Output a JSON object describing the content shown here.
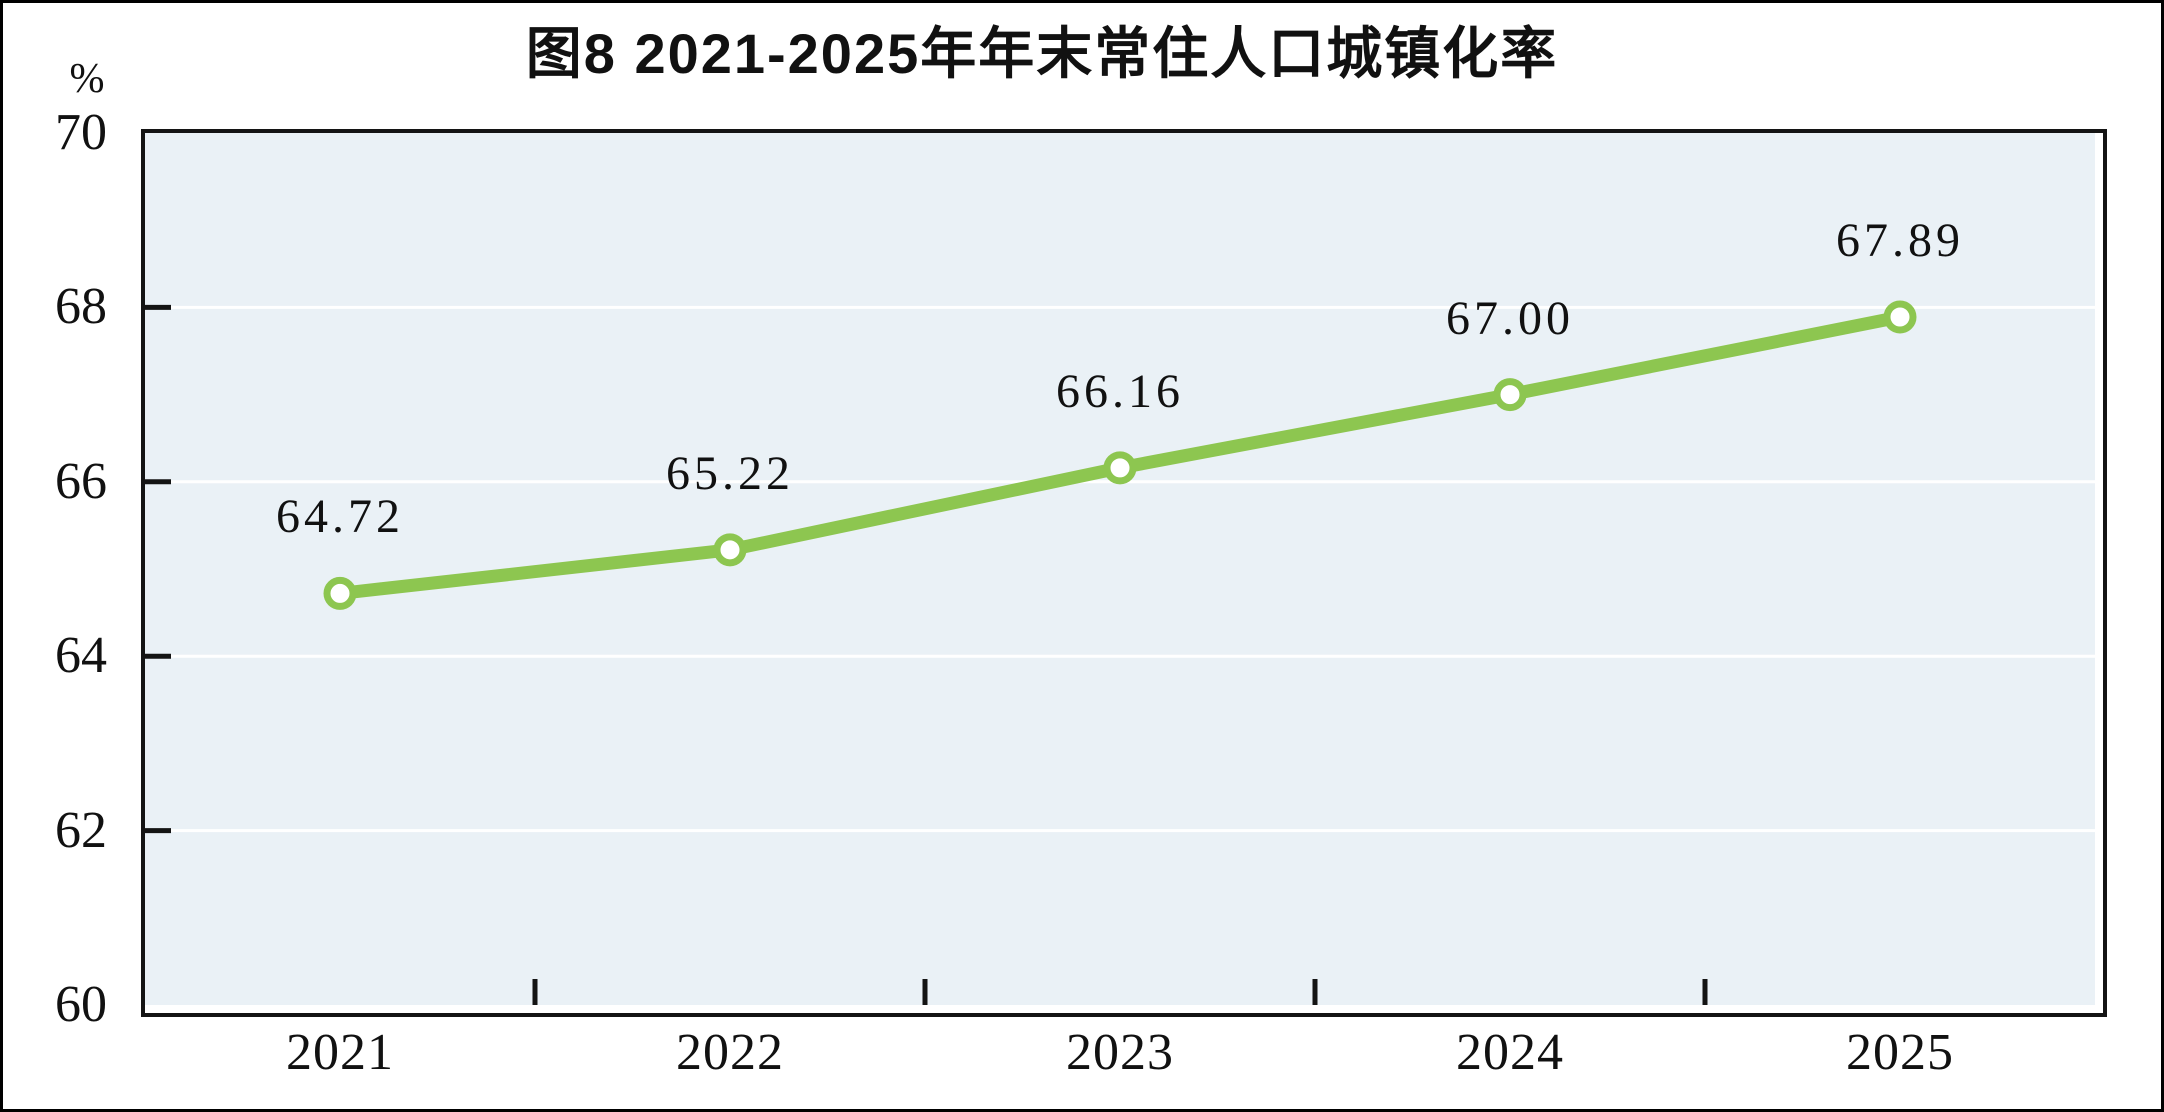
{
  "chart": {
    "title": "图8  2021-2025年年末常住人口城镇化率",
    "y_unit": "%"
  },
  "chart_data": {
    "type": "line",
    "title": "图8  2021-2025年年末常住人口城镇化率",
    "categories": [
      "2021",
      "2022",
      "2023",
      "2024",
      "2025"
    ],
    "values": [
      64.72,
      65.22,
      66.16,
      67.0,
      67.89
    ],
    "point_labels": [
      "64.72",
      "65.22",
      "66.16",
      "67.00",
      "67.89"
    ],
    "ylabel": "%",
    "xlabel": "",
    "ylim": [
      60,
      70
    ],
    "yticks": [
      60,
      62,
      64,
      66,
      68,
      70
    ],
    "grid": true,
    "legend": false,
    "style": {
      "line_color": "#8DC650",
      "marker_fill": "#FFFFFF",
      "plot_bg": "#EAF1F6",
      "grid_color": "#FFFFFF",
      "axis_color": "#141414",
      "text_color": "#111111"
    }
  }
}
